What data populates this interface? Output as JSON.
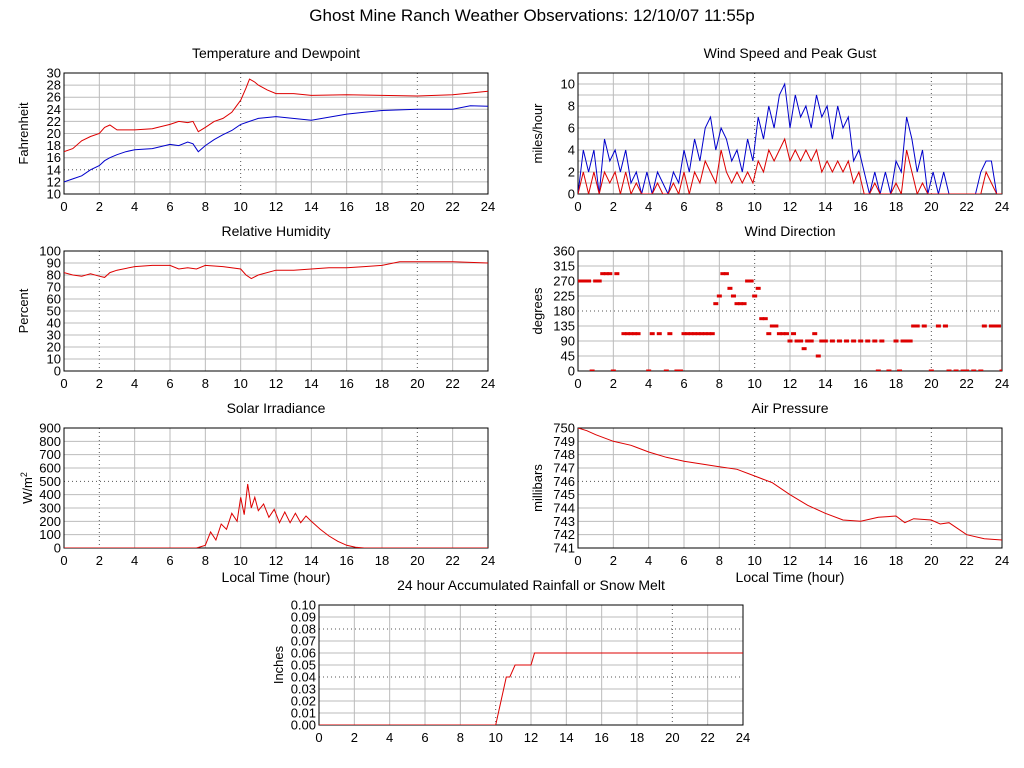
{
  "title": "Ghost Mine Ranch Weather Observations: 12/10/07 11:55p",
  "chart_data": [
    {
      "id": "temp",
      "type": "line",
      "title": "Temperature and Dewpoint",
      "xlabel": "",
      "ylabel": "Fahrenheit",
      "xlim": [
        0,
        24
      ],
      "ylim": [
        10,
        30
      ],
      "xticks": [
        "0",
        "2",
        "4",
        "6",
        "8",
        "10",
        "12",
        "14",
        "16",
        "18",
        "20",
        "22",
        "24"
      ],
      "yticks": [
        "10",
        "12",
        "14",
        "16",
        "18",
        "20",
        "22",
        "24",
        "26",
        "28",
        "30"
      ],
      "series": [
        {
          "color": "#dd0000",
          "x": [
            0,
            0.5,
            1,
            1.5,
            2,
            2.3,
            2.6,
            3,
            4,
            5,
            6,
            6.5,
            7,
            7.3,
            7.6,
            8,
            8.5,
            9,
            9.5,
            10,
            10.3,
            10.5,
            10.8,
            11,
            11.5,
            12,
            13,
            14,
            16,
            18,
            20,
            22,
            23,
            24
          ],
          "y": [
            17,
            17.5,
            18.8,
            19.5,
            20,
            21,
            21.4,
            20.6,
            20.6,
            20.8,
            21.5,
            22,
            21.8,
            22,
            20.3,
            21,
            22,
            22.5,
            23.5,
            25.5,
            27.5,
            29,
            28.5,
            28,
            27.2,
            26.6,
            26.6,
            26.3,
            26.4,
            26.3,
            26.2,
            26.4,
            26.7,
            27
          ]
        },
        {
          "color": "#0000cc",
          "x": [
            0,
            0.5,
            1,
            1.5,
            2,
            2.3,
            2.6,
            3,
            3.5,
            4,
            5,
            6,
            6.5,
            7,
            7.3,
            7.6,
            8,
            8.5,
            9,
            9.5,
            10,
            10.5,
            11,
            12,
            14,
            16,
            17,
            18,
            20,
            22,
            23,
            24
          ],
          "y": [
            12,
            12.5,
            13,
            14,
            14.7,
            15.5,
            16,
            16.5,
            17,
            17.3,
            17.5,
            18.2,
            18,
            18.6,
            18.3,
            17,
            18,
            19,
            19.8,
            20.5,
            21.5,
            22,
            22.5,
            22.8,
            22.2,
            23.2,
            23.5,
            23.8,
            24,
            24,
            24.6,
            24.5
          ]
        }
      ]
    },
    {
      "id": "wind",
      "type": "line",
      "title": "Wind Speed and Peak Gust",
      "xlabel": "",
      "ylabel": "miles/hour",
      "xlim": [
        0,
        24
      ],
      "ylim": [
        0,
        11
      ],
      "xticks": [
        "0",
        "2",
        "4",
        "6",
        "8",
        "10",
        "12",
        "14",
        "16",
        "18",
        "20",
        "22",
        "24"
      ],
      "yticks": [
        "0",
        "2",
        "4",
        "6",
        "8",
        "10"
      ],
      "series": [
        {
          "color": "#0000cc",
          "x": [
            0,
            0.3,
            0.6,
            0.9,
            1.2,
            1.5,
            1.8,
            2.1,
            2.4,
            2.7,
            3,
            3.3,
            3.6,
            3.9,
            4.2,
            4.5,
            4.8,
            5.1,
            5.4,
            5.7,
            6,
            6.3,
            6.6,
            6.9,
            7.2,
            7.5,
            7.8,
            8.1,
            8.4,
            8.7,
            9,
            9.3,
            9.6,
            9.9,
            10.2,
            10.5,
            10.8,
            11.1,
            11.4,
            11.7,
            12,
            12.3,
            12.6,
            12.9,
            13.2,
            13.5,
            13.8,
            14.1,
            14.4,
            14.7,
            15,
            15.3,
            15.6,
            15.9,
            16.2,
            16.5,
            16.8,
            17.1,
            17.4,
            17.7,
            18,
            18.3,
            18.6,
            18.9,
            19.2,
            19.5,
            19.8,
            20.1,
            20.4,
            20.7,
            21,
            21.3,
            21.6,
            21.9,
            22.2,
            22.5,
            22.8,
            23.1,
            23.4,
            23.7,
            24
          ],
          "y": [
            0,
            4,
            2,
            4,
            0,
            5,
            3,
            4,
            2,
            4,
            1,
            2,
            0,
            2,
            0,
            2,
            1,
            0,
            2,
            1,
            4,
            2,
            5,
            3,
            6,
            7,
            4,
            6,
            5,
            3,
            4,
            2,
            5,
            3,
            7,
            5,
            8,
            6,
            9,
            10,
            6,
            9,
            7,
            8,
            6,
            9,
            7,
            8,
            5,
            8,
            6,
            7,
            3,
            4,
            2,
            0,
            2,
            0,
            2,
            0,
            3,
            2,
            7,
            5,
            2,
            4,
            0,
            2,
            0,
            2,
            0,
            0,
            0,
            0,
            0,
            0,
            2,
            3,
            3,
            0,
            0
          ]
        },
        {
          "color": "#dd0000",
          "x": [
            0,
            0.3,
            0.6,
            0.9,
            1.2,
            1.5,
            1.8,
            2.1,
            2.4,
            2.7,
            3,
            3.3,
            3.6,
            3.9,
            4.2,
            4.5,
            4.8,
            5.1,
            5.4,
            5.7,
            6,
            6.3,
            6.6,
            6.9,
            7.2,
            7.5,
            7.8,
            8.1,
            8.4,
            8.7,
            9,
            9.3,
            9.6,
            9.9,
            10.2,
            10.5,
            10.8,
            11.1,
            11.4,
            11.7,
            12,
            12.3,
            12.6,
            12.9,
            13.2,
            13.5,
            13.8,
            14.1,
            14.4,
            14.7,
            15,
            15.3,
            15.6,
            15.9,
            16.2,
            16.5,
            16.8,
            17.1,
            17.4,
            17.7,
            18,
            18.3,
            18.6,
            18.9,
            19.2,
            19.5,
            19.8,
            20.1,
            20.4,
            20.7,
            21,
            21.3,
            21.6,
            21.9,
            22.2,
            22.5,
            22.8,
            23.1,
            23.4,
            23.7,
            24
          ],
          "y": [
            0,
            2,
            0,
            2,
            0,
            2,
            1,
            2,
            0,
            2,
            0,
            1,
            0,
            0,
            0,
            1,
            0,
            0,
            1,
            0,
            2,
            0,
            2,
            1,
            3,
            2,
            1,
            4,
            2,
            1,
            2,
            1,
            2,
            1,
            3,
            2,
            4,
            3,
            4,
            5,
            3,
            4,
            3,
            4,
            3,
            4,
            2,
            3,
            2,
            3,
            2,
            3,
            1,
            2,
            0,
            0,
            1,
            0,
            0,
            0,
            1,
            0,
            4,
            2,
            0,
            1,
            0,
            0,
            0,
            0,
            0,
            0,
            0,
            0,
            0,
            0,
            0,
            2,
            1,
            0,
            0
          ]
        }
      ]
    },
    {
      "id": "rh",
      "type": "line",
      "title": "Relative Humidity",
      "xlabel": "",
      "ylabel": "Percent",
      "xlim": [
        0,
        24
      ],
      "ylim": [
        0,
        100
      ],
      "xticks": [
        "0",
        "2",
        "4",
        "6",
        "8",
        "10",
        "12",
        "14",
        "16",
        "18",
        "20",
        "22",
        "24"
      ],
      "yticks": [
        "0",
        "10",
        "20",
        "30",
        "40",
        "50",
        "60",
        "70",
        "80",
        "90",
        "100"
      ],
      "series": [
        {
          "color": "#dd0000",
          "x": [
            0,
            0.5,
            1,
            1.5,
            2,
            2.3,
            2.6,
            3,
            4,
            5,
            6,
            6.5,
            7,
            7.5,
            8,
            9,
            10,
            10.3,
            10.6,
            11,
            12,
            13,
            14,
            15,
            16,
            17,
            18,
            19,
            20,
            22,
            24
          ],
          "y": [
            82,
            80,
            79,
            81,
            79,
            78,
            82,
            84,
            87,
            88,
            88,
            85,
            86,
            85,
            88,
            87,
            85,
            80,
            77,
            80,
            84,
            84,
            85,
            86,
            86,
            87,
            88,
            91,
            91,
            91,
            90
          ]
        }
      ]
    },
    {
      "id": "dir",
      "type": "scatter",
      "title": "Wind Direction",
      "xlabel": "",
      "ylabel": "degrees",
      "xlim": [
        0,
        24
      ],
      "ylim": [
        0,
        360
      ],
      "xticks": [
        "0",
        "2",
        "4",
        "6",
        "8",
        "10",
        "12",
        "14",
        "16",
        "18",
        "20",
        "22",
        "24"
      ],
      "yticks": [
        "0",
        "45",
        "90",
        "135",
        "180",
        "225",
        "270",
        "315",
        "360"
      ],
      "series": [
        {
          "color": "#dd0000",
          "x": [
            0,
            0.2,
            0.4,
            0.6,
            0.8,
            1,
            1.2,
            1.4,
            1.6,
            1.8,
            2,
            2.2,
            2.6,
            2.8,
            3,
            3.2,
            3.4,
            4,
            4.2,
            4.6,
            5,
            5.2,
            5.6,
            5.8,
            6,
            6.2,
            6.4,
            6.6,
            6.8,
            7,
            7.2,
            7.4,
            7.6,
            7.8,
            8,
            8.2,
            8.4,
            8.6,
            8.8,
            9,
            9.2,
            9.4,
            9.6,
            9.8,
            10,
            10.2,
            10.4,
            10.6,
            10.8,
            11,
            11.2,
            11.4,
            11.6,
            11.8,
            12,
            12.2,
            12.4,
            12.6,
            12.8,
            13,
            13.2,
            13.4,
            13.6,
            13.8,
            14,
            14.4,
            14.8,
            15.2,
            15.6,
            16,
            16.4,
            16.8,
            17,
            17.2,
            17.6,
            18,
            18.2,
            18.4,
            18.6,
            18.8,
            19,
            19.2,
            19.6,
            20,
            20.4,
            20.8,
            21,
            21.4,
            21.8,
            22,
            22.4,
            22.8,
            23,
            23.4,
            23.6,
            23.8,
            24
          ],
          "y": [
            270,
            270,
            270,
            270,
            0,
            270,
            270,
            292,
            292,
            292,
            0,
            292,
            112,
            112,
            112,
            112,
            112,
            0,
            112,
            112,
            0,
            112,
            0,
            0,
            112,
            112,
            112,
            112,
            112,
            112,
            112,
            112,
            112,
            202,
            225,
            292,
            292,
            248,
            225,
            202,
            202,
            202,
            270,
            270,
            225,
            248,
            157,
            157,
            112,
            135,
            135,
            112,
            112,
            112,
            90,
            112,
            90,
            90,
            67,
            90,
            90,
            112,
            45,
            90,
            90,
            90,
            90,
            90,
            90,
            90,
            90,
            90,
            0,
            90,
            0,
            90,
            0,
            90,
            90,
            90,
            135,
            135,
            135,
            0,
            135,
            135,
            0,
            0,
            0,
            0,
            0,
            0,
            135,
            135,
            135,
            135,
            0
          ]
        }
      ]
    },
    {
      "id": "solar",
      "type": "line",
      "title": "Solar Irradiance",
      "xlabel": "Local Time (hour)",
      "ylabel": "W/m2",
      "xlim": [
        0,
        24
      ],
      "ylim": [
        0,
        900
      ],
      "xticks": [
        "0",
        "2",
        "4",
        "6",
        "8",
        "10",
        "12",
        "14",
        "16",
        "18",
        "20",
        "22",
        "24"
      ],
      "yticks": [
        "0",
        "100",
        "200",
        "300",
        "400",
        "500",
        "600",
        "700",
        "800",
        "900"
      ],
      "series": [
        {
          "color": "#dd0000",
          "x": [
            0,
            7.5,
            8,
            8.3,
            8.6,
            8.9,
            9.2,
            9.5,
            9.8,
            10,
            10.2,
            10.4,
            10.6,
            10.8,
            11,
            11.3,
            11.6,
            11.9,
            12.2,
            12.5,
            12.8,
            13.1,
            13.4,
            13.7,
            14,
            14.5,
            15,
            15.5,
            16,
            16.5,
            17,
            24
          ],
          "y": [
            0,
            0,
            20,
            120,
            60,
            180,
            140,
            260,
            200,
            380,
            250,
            480,
            300,
            380,
            280,
            330,
            230,
            290,
            190,
            270,
            190,
            260,
            190,
            240,
            200,
            140,
            90,
            50,
            20,
            5,
            0,
            0
          ]
        }
      ]
    },
    {
      "id": "pressure",
      "type": "line",
      "title": "Air Pressure",
      "xlabel": "Local Time (hour)",
      "ylabel": "millibars",
      "xlim": [
        0,
        24
      ],
      "ylim": [
        741,
        750
      ],
      "xticks": [
        "0",
        "2",
        "4",
        "6",
        "8",
        "10",
        "12",
        "14",
        "16",
        "18",
        "20",
        "22",
        "24"
      ],
      "yticks": [
        "741",
        "742",
        "743",
        "744",
        "745",
        "746",
        "747",
        "748",
        "749",
        "750"
      ],
      "series": [
        {
          "color": "#dd0000",
          "x": [
            0,
            0.5,
            1,
            2,
            3,
            4,
            5,
            6,
            7,
            8,
            9,
            10,
            11,
            12,
            13,
            14,
            15,
            16,
            17,
            18,
            18.5,
            19,
            20,
            20.5,
            21,
            22,
            23,
            24
          ],
          "y": [
            750,
            749.8,
            749.5,
            749,
            748.7,
            748.2,
            747.8,
            747.5,
            747.3,
            747.1,
            746.9,
            746.4,
            745.9,
            745,
            744.2,
            743.6,
            743.1,
            743,
            743.3,
            743.4,
            742.9,
            743.2,
            743.1,
            742.8,
            742.9,
            742,
            741.7,
            741.6
          ]
        }
      ]
    },
    {
      "id": "rain",
      "type": "line",
      "title": "24 hour Accumulated Rainfall or Snow Melt",
      "xlabel": "",
      "ylabel": "Inches",
      "xlim": [
        0,
        24
      ],
      "ylim": [
        0,
        0.1
      ],
      "xticks": [
        "0",
        "2",
        "4",
        "6",
        "8",
        "10",
        "12",
        "14",
        "16",
        "18",
        "20",
        "22",
        "24"
      ],
      "yticks": [
        "0.00",
        "0.01",
        "0.02",
        "0.03",
        "0.04",
        "0.05",
        "0.06",
        "0.07",
        "0.08",
        "0.09",
        "0.10"
      ],
      "series": [
        {
          "color": "#dd0000",
          "x": [
            0,
            10,
            10.3,
            10.6,
            10.8,
            11.1,
            11.1,
            12,
            12.1,
            12.2,
            12.3,
            24
          ],
          "y": [
            0,
            0,
            0.02,
            0.04,
            0.04,
            0.05,
            0.05,
            0.05,
            0.055,
            0.06,
            0.06,
            0.06
          ]
        }
      ]
    }
  ]
}
